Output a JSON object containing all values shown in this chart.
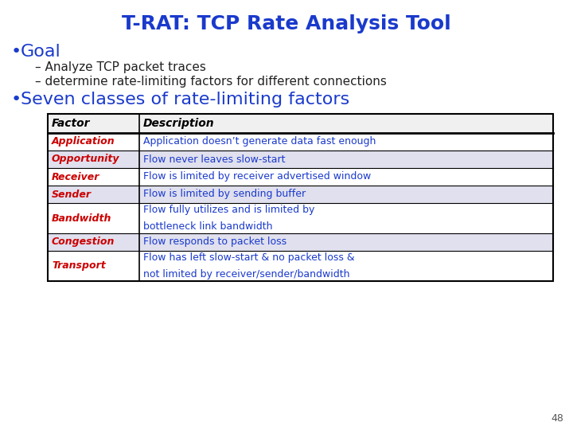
{
  "title": "T-RAT: TCP Rate Analysis Tool",
  "title_color": "#1a3acc",
  "bullet_color": "#1a3acc",
  "bullet1": "Goal",
  "sub1": "– Analyze TCP packet traces",
  "sub2": "– determine rate-limiting factors for different connections",
  "bullet2": "Seven classes of rate-limiting factors",
  "page_num": "48",
  "bg_color": "#ffffff",
  "table_header": [
    "Factor",
    "Description"
  ],
  "table_rows": [
    [
      "Application",
      "Application doesn’t generate data fast enough"
    ],
    [
      "Opportunity",
      "Flow never leaves slow-start"
    ],
    [
      "Receiver",
      "Flow is limited by receiver advertised window"
    ],
    [
      "Sender",
      "Flow is limited by sending buffer"
    ],
    [
      "Bandwidth",
      "Flow fully utilizes and is limited by\nbottleneck link bandwidth"
    ],
    [
      "Congestion",
      "Flow responds to packet loss"
    ],
    [
      "Transport",
      "Flow has left slow-start & no packet loss &\nnot limited by receiver/sender/bandwidth"
    ]
  ],
  "factor_color": "#cc0000",
  "desc_color": "#1a3acc",
  "row_bg_odd": "#ffffff",
  "row_bg_even": "#e0e0ee",
  "table_border_color": "#000000",
  "sub_color": "#222222"
}
